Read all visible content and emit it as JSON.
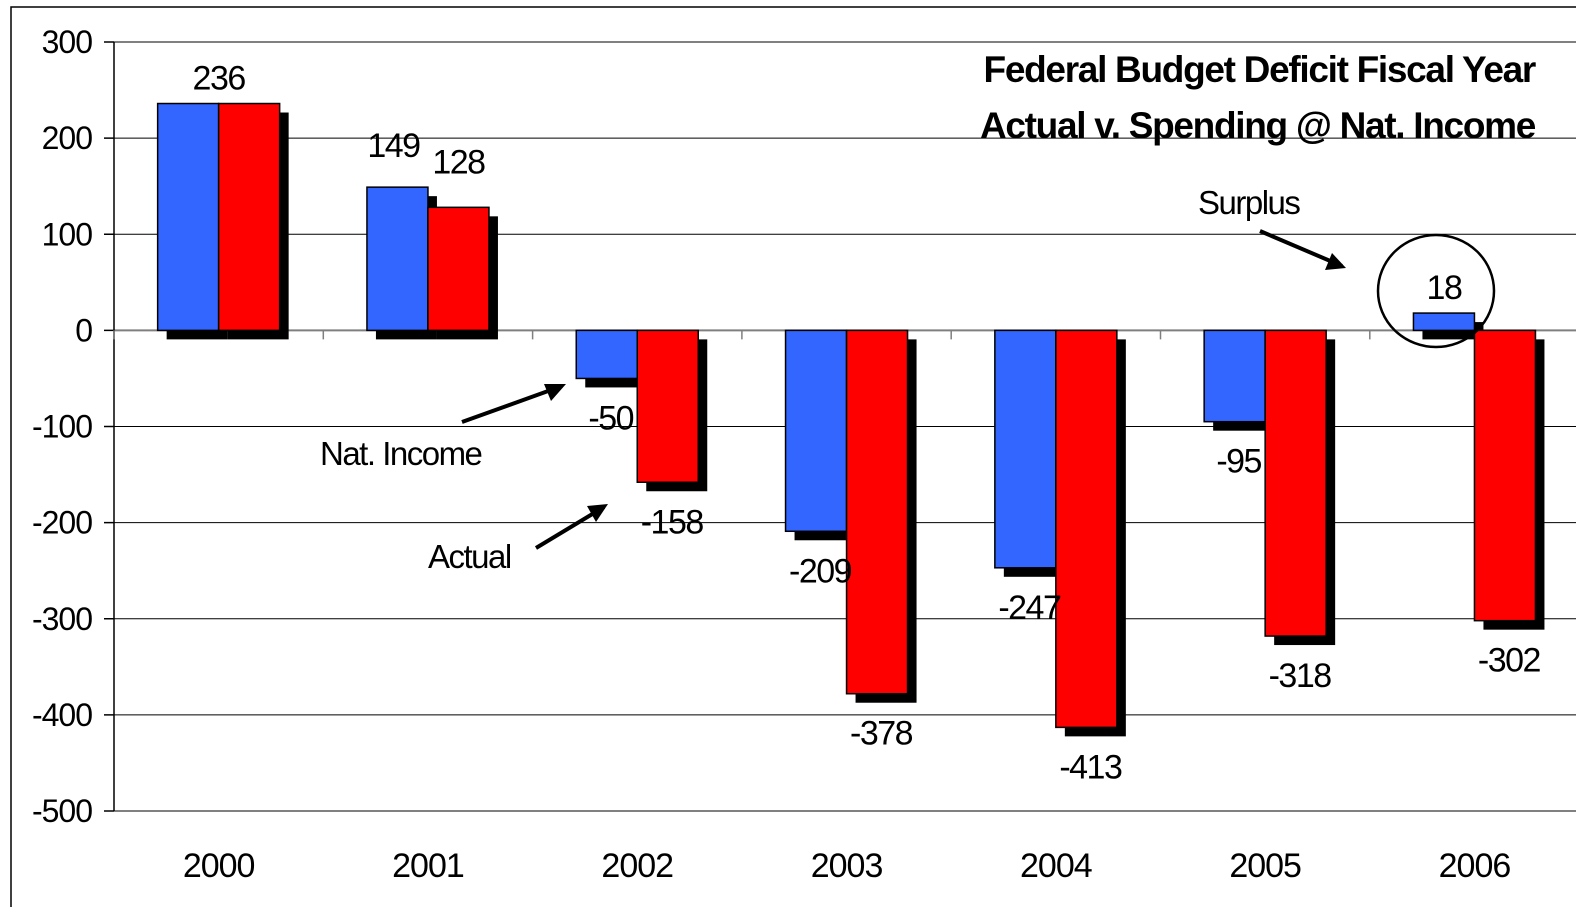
{
  "chart_data": {
    "type": "bar",
    "title_lines": [
      "Federal Budget Deficit Fiscal Year",
      "Actual v. Spending @ Nat. Income"
    ],
    "xlabel": "",
    "ylabel": "",
    "ylim": [
      -500,
      300
    ],
    "yticks": [
      300,
      200,
      100,
      0,
      -100,
      -200,
      -300,
      -400,
      -500
    ],
    "grid": true,
    "legend": "none",
    "categories": [
      "2000",
      "2001",
      "2002",
      "2003",
      "2004",
      "2005",
      "2006"
    ],
    "series": [
      {
        "key": "nat-income",
        "color": "#3366ff",
        "values": [
          236,
          149,
          -50,
          -209,
          -247,
          -95,
          18
        ]
      },
      {
        "key": "actual",
        "color": "#ff0000",
        "values": [
          236,
          128,
          -158,
          -378,
          -413,
          -318,
          -302
        ]
      }
    ],
    "annotations": {
      "nat_income": "Nat. Income",
      "actual": "Actual",
      "surplus": "Surplus"
    }
  }
}
